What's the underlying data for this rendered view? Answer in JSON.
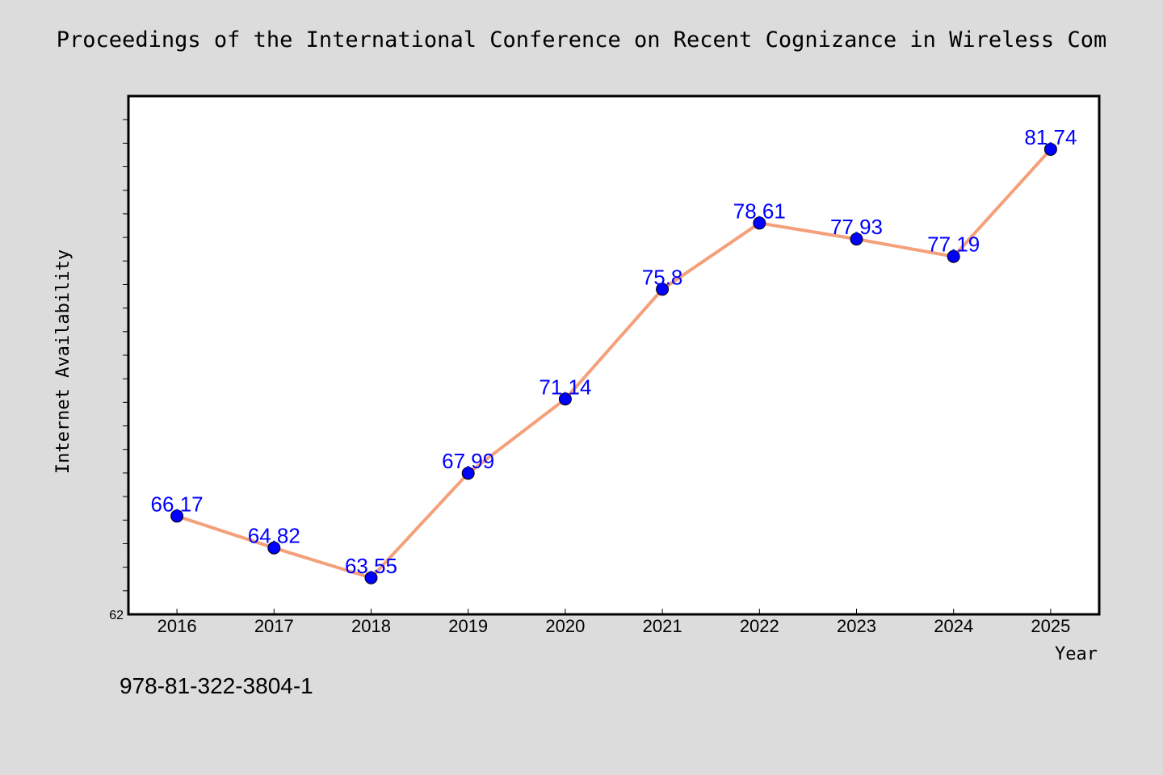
{
  "header": {
    "title": "Proceedings of the International Conference on Recent Cognizance in Wireless Com"
  },
  "footer": {
    "code": "978-81-322-3804-1"
  },
  "chart_data": {
    "type": "line",
    "title": "Proceedings of the International Conference on Recent Cognizance in Wireless Com",
    "xlabel": "Year",
    "ylabel": "Internet Availability",
    "categories": [
      "2016",
      "2017",
      "2018",
      "2019",
      "2020",
      "2021",
      "2022",
      "2023",
      "2024",
      "2025"
    ],
    "series": [
      {
        "values": [
          66.17,
          64.82,
          63.55,
          67.99,
          71.14,
          75.8,
          78.61,
          77.93,
          77.19,
          81.74
        ],
        "labels": [
          "66.17",
          "64.82",
          "63.55",
          "67.99",
          "71.14",
          "75.8",
          "78.61",
          "77.93",
          "77.19",
          "81.74"
        ],
        "line_color": "#f4a07a",
        "marker_color": "#0000ff"
      }
    ],
    "ylim": [
      62,
      84
    ],
    "yticks_labeled": [
      "62"
    ],
    "grid": false,
    "legend": "none"
  }
}
